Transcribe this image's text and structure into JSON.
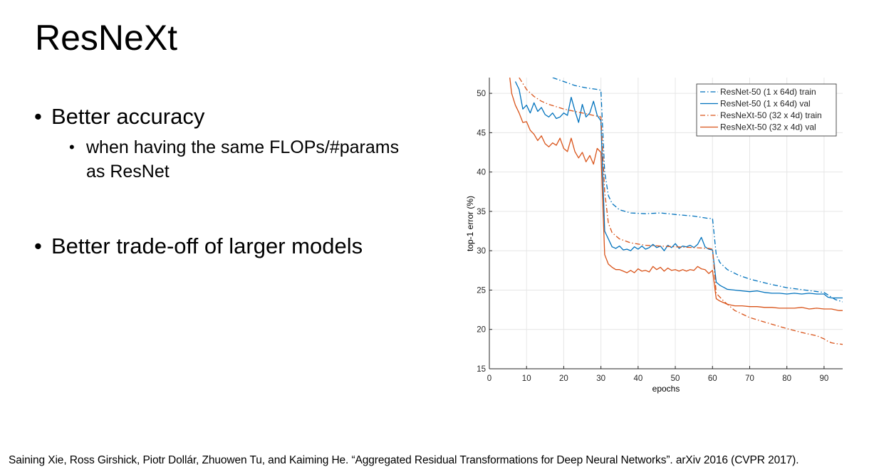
{
  "slide": {
    "title": "ResNeXt",
    "bullets": [
      {
        "text": "Better accuracy",
        "sub": [
          "when having the same FLOPs/#params",
          "as ResNet"
        ]
      },
      {
        "text": "Better trade-off of larger models"
      }
    ],
    "citation": "Saining Xie, Ross Girshick, Piotr Dollár, Zhuowen Tu, and Kaiming He. “Aggregated Residual Transformations for Deep Neural Networks”. arXiv 2016 (CVPR 2017)."
  },
  "chart_data": {
    "type": "line",
    "title": "",
    "xlabel": "epochs",
    "ylabel": "top-1 error (%)",
    "xlim": [
      0,
      95
    ],
    "ylim": [
      15,
      52
    ],
    "xticks": [
      0,
      10,
      20,
      30,
      40,
      50,
      60,
      70,
      80,
      90
    ],
    "yticks": [
      15,
      20,
      25,
      30,
      35,
      40,
      45,
      50
    ],
    "grid": true,
    "legend_position": "top-right",
    "series": [
      {
        "name": "ResNet-50 (1 x 64d) train",
        "color": "#0072BD",
        "style": "dashdot",
        "x": [
          17,
          20,
          23,
          26,
          29,
          30,
          31,
          32,
          33,
          35,
          38,
          42,
          46,
          50,
          55,
          59,
          60,
          61,
          62,
          64,
          67,
          70,
          75,
          80,
          85,
          90,
          93,
          95
        ],
        "y": [
          52,
          51.5,
          51,
          50.7,
          50.5,
          50.4,
          40,
          37,
          36,
          35.2,
          34.8,
          34.7,
          34.8,
          34.6,
          34.4,
          34.1,
          34.1,
          29.5,
          28.5,
          27.6,
          26.9,
          26.4,
          25.8,
          25.3,
          25.0,
          24.7,
          23.8,
          23.5
        ]
      },
      {
        "name": "ResNet-50 (1 x 64d) val",
        "color": "#0072BD",
        "style": "solid",
        "x": [
          7,
          8,
          9,
          10,
          11,
          12,
          13,
          14,
          15,
          16,
          17,
          18,
          19,
          20,
          21,
          22,
          23,
          24,
          25,
          26,
          27,
          28,
          29,
          30,
          31,
          32,
          33,
          34,
          35,
          36,
          37,
          38,
          39,
          40,
          41,
          42,
          43,
          44,
          45,
          46,
          47,
          48,
          49,
          50,
          51,
          52,
          53,
          54,
          55,
          56,
          57,
          58,
          59,
          60,
          61,
          62,
          64,
          66,
          68,
          70,
          72,
          74,
          76,
          78,
          80,
          82,
          84,
          86,
          88,
          90,
          91,
          92,
          93,
          95
        ],
        "y": [
          51.5,
          50.5,
          48,
          48.5,
          47.5,
          48.8,
          47.7,
          48.2,
          47.3,
          47,
          47.5,
          46.8,
          47,
          47.5,
          47.2,
          49.5,
          47.8,
          46.3,
          48.6,
          47,
          47.5,
          49,
          47.2,
          46.5,
          32.5,
          31.5,
          30.5,
          30.3,
          30.6,
          30.1,
          30.2,
          30.0,
          30.5,
          30.2,
          30.6,
          30.2,
          30.4,
          30.8,
          30.4,
          30.6,
          30.0,
          30.7,
          30.4,
          30.9,
          30.3,
          30.6,
          30.5,
          30.7,
          30.4,
          30.8,
          31.7,
          30.5,
          30.2,
          30.1,
          26,
          25.6,
          25.1,
          25.0,
          24.9,
          24.8,
          24.9,
          24.7,
          24.6,
          24.6,
          24.5,
          24.6,
          24.5,
          24.6,
          24.5,
          24.5,
          24.1,
          24.0,
          24.0,
          24.0
        ]
      },
      {
        "name": "ResNeXt-50 (32 x 4d) train",
        "color": "#D95319",
        "style": "dashdot",
        "x": [
          8,
          10,
          12,
          14,
          16,
          18,
          20,
          22,
          24,
          26,
          28,
          30,
          31,
          32,
          33,
          35,
          38,
          42,
          46,
          50,
          55,
          59,
          60,
          61,
          63,
          66,
          70,
          75,
          80,
          85,
          88,
          90,
          91,
          92,
          93,
          95
        ],
        "y": [
          52,
          50.5,
          49.6,
          49,
          48.6,
          48.3,
          48.0,
          47.8,
          47.6,
          47.4,
          47.2,
          47.0,
          37.5,
          33.5,
          32.3,
          31.5,
          31.0,
          30.7,
          30.6,
          30.5,
          30.4,
          30.3,
          30.2,
          24.6,
          23.6,
          22.4,
          21.5,
          20.8,
          20.1,
          19.5,
          19.2,
          18.8,
          18.5,
          18.3,
          18.2,
          18.1
        ]
      },
      {
        "name": "ResNeXt-50 (32 x 4d) val",
        "color": "#D95319",
        "style": "solid",
        "x": [
          5.5,
          6,
          7,
          8,
          9,
          10,
          11,
          12,
          13,
          14,
          15,
          16,
          17,
          18,
          19,
          20,
          21,
          22,
          23,
          24,
          25,
          26,
          27,
          28,
          29,
          30,
          31,
          32,
          33,
          34,
          35,
          36,
          37,
          38,
          39,
          40,
          41,
          42,
          43,
          44,
          45,
          46,
          47,
          48,
          49,
          50,
          51,
          52,
          53,
          54,
          55,
          56,
          57,
          58,
          59,
          60,
          61,
          62,
          64,
          66,
          68,
          70,
          72,
          74,
          76,
          78,
          80,
          82,
          84,
          86,
          88,
          90,
          92,
          94,
          95
        ],
        "y": [
          52,
          50,
          48.5,
          47.5,
          46.3,
          46.4,
          45.3,
          44.8,
          44.0,
          44.6,
          43.6,
          43.2,
          43.7,
          43.4,
          44.3,
          43.0,
          42.6,
          44.3,
          42.6,
          41.8,
          42.5,
          41.3,
          42.1,
          41.0,
          43.0,
          42.5,
          29.5,
          28.3,
          27.9,
          27.6,
          27.6,
          27.4,
          27.2,
          27.5,
          27.2,
          27.7,
          27.4,
          27.5,
          27.3,
          28.0,
          27.6,
          27.9,
          27.4,
          27.8,
          27.5,
          27.6,
          27.4,
          27.6,
          27.4,
          27.6,
          27.5,
          28.0,
          27.7,
          27.6,
          27.1,
          27.5,
          23.9,
          23.6,
          23.2,
          23.0,
          23.0,
          22.9,
          22.9,
          22.8,
          22.8,
          22.7,
          22.7,
          22.7,
          22.8,
          22.6,
          22.7,
          22.6,
          22.6,
          22.4,
          22.4
        ]
      }
    ]
  }
}
